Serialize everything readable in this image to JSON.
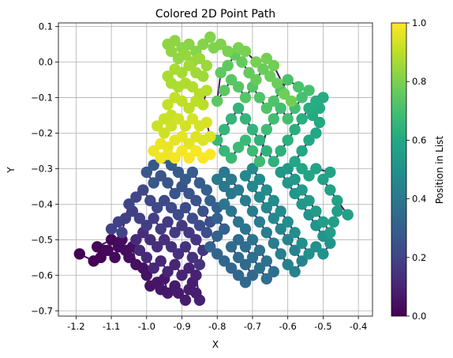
{
  "chart_data": {
    "type": "scatter",
    "title": "Colored 2D Point Path",
    "xlabel": "X",
    "ylabel": "Y",
    "xlim": [
      -1.25,
      -0.36
    ],
    "ylim": [
      -0.715,
      0.11
    ],
    "xticks": [
      "-1.2",
      "-1.1",
      "-1.0",
      "-0.9",
      "-0.8",
      "-0.7",
      "-0.6",
      "-0.5",
      "-0.4"
    ],
    "yticks": [
      "0.1",
      "0.0",
      "−0.1",
      "−0.2",
      "−0.3",
      "−0.4",
      "−0.5",
      "−0.6",
      "−0.7"
    ],
    "grid": true,
    "colormap": "viridis",
    "colorbar": {
      "label": "Position in List",
      "range": [
        0,
        1
      ],
      "ticks": [
        "0.0",
        "0.2",
        "0.4",
        "0.6",
        "0.8",
        "1.0"
      ]
    },
    "connected_path": true,
    "series": [
      {
        "description_of_order": "points ordered along a path; color = position in list (0→1)",
        "points": [
          [
            -1.19,
            -0.54
          ],
          [
            -1.15,
            -0.56
          ],
          [
            -1.13,
            -0.55
          ],
          [
            -1.12,
            -0.53
          ],
          [
            -1.14,
            -0.52
          ],
          [
            -1.1,
            -0.5
          ],
          [
            -1.11,
            -0.53
          ],
          [
            -1.09,
            -0.55
          ],
          [
            -1.08,
            -0.52
          ],
          [
            -1.07,
            -0.5
          ],
          [
            -1.06,
            -0.53
          ],
          [
            -1.05,
            -0.55
          ],
          [
            -1.04,
            -0.52
          ],
          [
            -1.03,
            -0.57
          ],
          [
            -1.01,
            -0.58
          ],
          [
            -1.0,
            -0.6
          ],
          [
            -0.99,
            -0.63
          ],
          [
            -0.97,
            -0.62
          ],
          [
            -0.96,
            -0.64
          ],
          [
            -0.95,
            -0.61
          ],
          [
            -0.94,
            -0.65
          ],
          [
            -0.92,
            -0.63
          ],
          [
            -0.91,
            -0.65
          ],
          [
            -0.89,
            -0.67
          ],
          [
            -0.88,
            -0.64
          ],
          [
            -0.87,
            -0.62
          ],
          [
            -0.86,
            -0.65
          ],
          [
            -0.85,
            -0.67
          ],
          [
            -0.86,
            -0.6
          ],
          [
            -0.88,
            -0.58
          ],
          [
            -0.9,
            -0.6
          ],
          [
            -0.92,
            -0.57
          ],
          [
            -0.94,
            -0.59
          ],
          [
            -0.96,
            -0.56
          ],
          [
            -0.98,
            -0.58
          ],
          [
            -1.0,
            -0.55
          ],
          [
            -1.02,
            -0.53
          ],
          [
            -1.03,
            -0.5
          ],
          [
            -1.01,
            -0.48
          ],
          [
            -0.99,
            -0.5
          ],
          [
            -0.97,
            -0.52
          ],
          [
            -0.95,
            -0.5
          ],
          [
            -0.93,
            -0.52
          ],
          [
            -0.91,
            -0.54
          ],
          [
            -0.89,
            -0.52
          ],
          [
            -0.87,
            -0.55
          ],
          [
            -0.85,
            -0.57
          ],
          [
            -0.84,
            -0.53
          ],
          [
            -0.86,
            -0.5
          ],
          [
            -0.88,
            -0.48
          ],
          [
            -0.9,
            -0.46
          ],
          [
            -0.92,
            -0.48
          ],
          [
            -0.94,
            -0.45
          ],
          [
            -0.96,
            -0.47
          ],
          [
            -0.98,
            -0.44
          ],
          [
            -1.0,
            -0.46
          ],
          [
            -1.02,
            -0.44
          ],
          [
            -1.04,
            -0.42
          ],
          [
            -1.06,
            -0.44
          ],
          [
            -1.08,
            -0.45
          ],
          [
            -1.1,
            -0.47
          ],
          [
            -1.07,
            -0.48
          ],
          [
            -1.05,
            -0.4
          ],
          [
            -1.03,
            -0.38
          ],
          [
            -1.01,
            -0.36
          ],
          [
            -0.99,
            -0.39
          ],
          [
            -0.97,
            -0.41
          ],
          [
            -0.95,
            -0.39
          ],
          [
            -0.93,
            -0.41
          ],
          [
            -0.91,
            -0.43
          ],
          [
            -0.89,
            -0.41
          ],
          [
            -0.87,
            -0.44
          ],
          [
            -0.85,
            -0.46
          ],
          [
            -0.83,
            -0.48
          ],
          [
            -0.82,
            -0.45
          ],
          [
            -0.84,
            -0.42
          ],
          [
            -0.86,
            -0.39
          ],
          [
            -0.88,
            -0.37
          ],
          [
            -0.9,
            -0.35
          ],
          [
            -0.92,
            -0.37
          ],
          [
            -0.94,
            -0.34
          ],
          [
            -0.96,
            -0.32
          ],
          [
            -0.98,
            -0.34
          ],
          [
            -1.0,
            -0.31
          ],
          [
            -0.98,
            -0.29
          ],
          [
            -0.95,
            -0.27
          ],
          [
            -0.93,
            -0.29
          ],
          [
            -0.91,
            -0.31
          ],
          [
            -0.89,
            -0.33
          ],
          [
            -0.87,
            -0.31
          ],
          [
            -0.85,
            -0.34
          ],
          [
            -0.83,
            -0.36
          ],
          [
            -0.82,
            -0.39
          ],
          [
            -0.8,
            -0.41
          ],
          [
            -0.8,
            -0.44
          ],
          [
            -0.78,
            -0.47
          ],
          [
            -0.8,
            -0.49
          ],
          [
            -0.82,
            -0.52
          ],
          [
            -0.8,
            -0.54
          ],
          [
            -0.78,
            -0.56
          ],
          [
            -0.76,
            -0.58
          ],
          [
            -0.74,
            -0.6
          ],
          [
            -0.72,
            -0.62
          ],
          [
            -0.7,
            -0.6
          ],
          [
            -0.72,
            -0.57
          ],
          [
            -0.74,
            -0.55
          ],
          [
            -0.76,
            -0.52
          ],
          [
            -0.74,
            -0.5
          ],
          [
            -0.72,
            -0.52
          ],
          [
            -0.7,
            -0.55
          ],
          [
            -0.68,
            -0.58
          ],
          [
            -0.66,
            -0.61
          ],
          [
            -0.64,
            -0.59
          ],
          [
            -0.66,
            -0.56
          ],
          [
            -0.68,
            -0.53
          ],
          [
            -0.7,
            -0.5
          ],
          [
            -0.72,
            -0.47
          ],
          [
            -0.74,
            -0.45
          ],
          [
            -0.76,
            -0.42
          ],
          [
            -0.78,
            -0.4
          ],
          [
            -0.76,
            -0.37
          ],
          [
            -0.78,
            -0.35
          ],
          [
            -0.8,
            -0.33
          ],
          [
            -0.78,
            -0.31
          ],
          [
            -0.76,
            -0.33
          ],
          [
            -0.74,
            -0.36
          ],
          [
            -0.72,
            -0.39
          ],
          [
            -0.7,
            -0.42
          ],
          [
            -0.68,
            -0.45
          ],
          [
            -0.66,
            -0.48
          ],
          [
            -0.64,
            -0.51
          ],
          [
            -0.62,
            -0.54
          ],
          [
            -0.6,
            -0.57
          ],
          [
            -0.58,
            -0.59
          ],
          [
            -0.56,
            -0.56
          ],
          [
            -0.58,
            -0.53
          ],
          [
            -0.6,
            -0.5
          ],
          [
            -0.62,
            -0.47
          ],
          [
            -0.64,
            -0.44
          ],
          [
            -0.66,
            -0.41
          ],
          [
            -0.68,
            -0.38
          ],
          [
            -0.7,
            -0.35
          ],
          [
            -0.72,
            -0.32
          ],
          [
            -0.7,
            -0.3
          ],
          [
            -0.68,
            -0.33
          ],
          [
            -0.66,
            -0.36
          ],
          [
            -0.64,
            -0.39
          ],
          [
            -0.62,
            -0.42
          ],
          [
            -0.6,
            -0.45
          ],
          [
            -0.58,
            -0.48
          ],
          [
            -0.56,
            -0.51
          ],
          [
            -0.54,
            -0.54
          ],
          [
            -0.52,
            -0.52
          ],
          [
            -0.5,
            -0.54
          ],
          [
            -0.48,
            -0.51
          ],
          [
            -0.5,
            -0.49
          ],
          [
            -0.52,
            -0.46
          ],
          [
            -0.54,
            -0.43
          ],
          [
            -0.56,
            -0.4
          ],
          [
            -0.58,
            -0.37
          ],
          [
            -0.6,
            -0.34
          ],
          [
            -0.62,
            -0.31
          ],
          [
            -0.6,
            -0.3
          ],
          [
            -0.58,
            -0.33
          ],
          [
            -0.56,
            -0.36
          ],
          [
            -0.54,
            -0.39
          ],
          [
            -0.52,
            -0.42
          ],
          [
            -0.5,
            -0.45
          ],
          [
            -0.48,
            -0.48
          ],
          [
            -0.47,
            -0.45
          ],
          [
            -0.46,
            -0.42
          ],
          [
            -0.43,
            -0.43
          ],
          [
            -0.46,
            -0.39
          ],
          [
            -0.48,
            -0.36
          ],
          [
            -0.5,
            -0.33
          ],
          [
            -0.48,
            -0.31
          ],
          [
            -0.52,
            -0.3
          ],
          [
            -0.54,
            -0.32
          ],
          [
            -0.56,
            -0.3
          ],
          [
            -0.58,
            -0.28
          ],
          [
            -0.56,
            -0.25
          ],
          [
            -0.54,
            -0.22
          ],
          [
            -0.52,
            -0.2
          ],
          [
            -0.51,
            -0.17
          ],
          [
            -0.53,
            -0.15
          ],
          [
            -0.51,
            -0.13
          ],
          [
            -0.5,
            -0.1
          ],
          [
            -0.52,
            -0.11
          ],
          [
            -0.54,
            -0.13
          ],
          [
            -0.56,
            -0.16
          ],
          [
            -0.58,
            -0.19
          ],
          [
            -0.6,
            -0.22
          ],
          [
            -0.62,
            -0.25
          ],
          [
            -0.64,
            -0.28
          ],
          [
            -0.66,
            -0.25
          ],
          [
            -0.68,
            -0.22
          ],
          [
            -0.7,
            -0.19
          ],
          [
            -0.72,
            -0.16
          ],
          [
            -0.74,
            -0.13
          ],
          [
            -0.76,
            -0.16
          ],
          [
            -0.78,
            -0.19
          ],
          [
            -0.8,
            -0.22
          ],
          [
            -0.78,
            -0.25
          ],
          [
            -0.76,
            -0.27
          ],
          [
            -0.74,
            -0.24
          ],
          [
            -0.72,
            -0.22
          ],
          [
            -0.7,
            -0.25
          ],
          [
            -0.68,
            -0.28
          ],
          [
            -0.66,
            -0.19
          ],
          [
            -0.64,
            -0.16
          ],
          [
            -0.62,
            -0.13
          ],
          [
            -0.6,
            -0.16
          ],
          [
            -0.58,
            -0.13
          ],
          [
            -0.56,
            -0.1
          ],
          [
            -0.54,
            -0.08
          ],
          [
            -0.57,
            -0.07
          ],
          [
            -0.6,
            -0.05
          ],
          [
            -0.62,
            -0.08
          ],
          [
            -0.64,
            -0.11
          ],
          [
            -0.66,
            -0.13
          ],
          [
            -0.68,
            -0.1
          ],
          [
            -0.7,
            -0.07
          ],
          [
            -0.72,
            -0.1
          ],
          [
            -0.74,
            -0.07
          ],
          [
            -0.76,
            -0.05
          ],
          [
            -0.78,
            -0.08
          ],
          [
            -0.8,
            -0.11
          ],
          [
            -0.79,
            -0.03
          ],
          [
            -0.77,
            -0.01
          ],
          [
            -0.75,
            0.02
          ],
          [
            -0.73,
            0.0
          ],
          [
            -0.71,
            -0.03
          ],
          [
            -0.69,
            -0.05
          ],
          [
            -0.67,
            -0.02
          ],
          [
            -0.65,
            -0.04
          ],
          [
            -0.63,
            -0.06
          ],
          [
            -0.61,
            -0.09
          ],
          [
            -0.59,
            -0.11
          ],
          [
            -0.64,
            -0.01
          ],
          [
            -0.66,
            0.01
          ],
          [
            -0.69,
            0.0
          ],
          [
            -0.72,
            0.03
          ],
          [
            -0.74,
            0.04
          ],
          [
            -0.77,
            0.03
          ],
          [
            -0.79,
            0.05
          ],
          [
            -0.81,
            0.04
          ],
          [
            -0.82,
            0.07
          ],
          [
            -0.84,
            0.05
          ],
          [
            -0.86,
            0.03
          ],
          [
            -0.88,
            0.05
          ],
          [
            -0.9,
            0.04
          ],
          [
            -0.92,
            0.06
          ],
          [
            -0.94,
            0.05
          ],
          [
            -0.93,
            0.03
          ],
          [
            -0.91,
            0.01
          ],
          [
            -0.89,
            0.02
          ],
          [
            -0.87,
            0.0
          ],
          [
            -0.85,
            0.01
          ],
          [
            -0.83,
            -0.01
          ],
          [
            -0.84,
            -0.04
          ],
          [
            -0.86,
            -0.03
          ],
          [
            -0.88,
            -0.01
          ],
          [
            -0.9,
            -0.03
          ],
          [
            -0.92,
            -0.02
          ],
          [
            -0.94,
            -0.04
          ],
          [
            -0.93,
            -0.06
          ],
          [
            -0.91,
            -0.07
          ],
          [
            -0.89,
            -0.06
          ],
          [
            -0.87,
            -0.07
          ],
          [
            -0.85,
            -0.09
          ],
          [
            -0.83,
            -0.08
          ],
          [
            -0.84,
            -0.12
          ],
          [
            -0.86,
            -0.11
          ],
          [
            -0.88,
            -0.13
          ],
          [
            -0.9,
            -0.11
          ],
          [
            -0.92,
            -0.1
          ],
          [
            -0.94,
            -0.12
          ],
          [
            -0.93,
            -0.15
          ],
          [
            -0.95,
            -0.16
          ],
          [
            -0.97,
            -0.18
          ],
          [
            -0.95,
            -0.2
          ],
          [
            -0.93,
            -0.18
          ],
          [
            -0.91,
            -0.16
          ],
          [
            -0.89,
            -0.18
          ],
          [
            -0.87,
            -0.16
          ],
          [
            -0.85,
            -0.18
          ],
          [
            -0.83,
            -0.17
          ],
          [
            -0.82,
            -0.21
          ],
          [
            -0.84,
            -0.22
          ],
          [
            -0.86,
            -0.21
          ],
          [
            -0.88,
            -0.23
          ],
          [
            -0.9,
            -0.21
          ],
          [
            -0.92,
            -0.22
          ],
          [
            -0.94,
            -0.24
          ],
          [
            -0.96,
            -0.23
          ],
          [
            -0.98,
            -0.25
          ],
          [
            -0.96,
            -0.27
          ],
          [
            -0.94,
            -0.26
          ],
          [
            -0.92,
            -0.27
          ],
          [
            -0.9,
            -0.25
          ],
          [
            -0.88,
            -0.27
          ],
          [
            -0.86,
            -0.25
          ],
          [
            -0.84,
            -0.27
          ],
          [
            -0.82,
            -0.26
          ]
        ]
      }
    ]
  }
}
